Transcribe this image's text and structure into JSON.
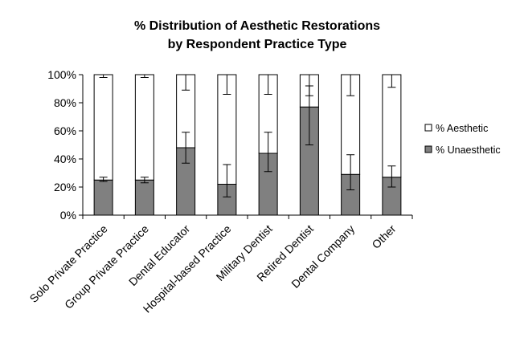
{
  "chart_data": {
    "type": "bar",
    "stacked": true,
    "percent_stacked": true,
    "title": "% Distribution of Aesthetic Restorations",
    "subtitle": "by Respondent Practice Type",
    "xlabel": "",
    "ylabel": "",
    "ylim": [
      0,
      100
    ],
    "yticks": [
      "0%",
      "20%",
      "40%",
      "60%",
      "80%",
      "100%"
    ],
    "grid": false,
    "legend_position": "right",
    "categories": [
      "Solo Private Practice",
      "Group Private Practice",
      "Dental Educator",
      "Hospital-based Practice",
      "Military Dentist",
      "Retired Dentist",
      "Dental Company",
      "Other"
    ],
    "series": [
      {
        "name": "% Unaesthetic",
        "color": "#808080",
        "values": [
          25,
          25,
          48,
          22,
          44,
          77,
          29,
          27
        ],
        "error": [
          [
            24,
            27
          ],
          [
            23,
            27
          ],
          [
            37,
            59
          ],
          [
            13,
            36
          ],
          [
            31,
            59
          ],
          [
            50,
            92
          ],
          [
            18,
            43
          ],
          [
            20,
            35
          ]
        ]
      },
      {
        "name": "% Aesthetic",
        "color": "#ffffff",
        "values": [
          75,
          75,
          52,
          78,
          56,
          23,
          71,
          73
        ],
        "error": [
          [
            98,
            100
          ],
          [
            98,
            100
          ],
          [
            89,
            100
          ],
          [
            86,
            100
          ],
          [
            86,
            100
          ],
          [
            85,
            100
          ],
          [
            85,
            100
          ],
          [
            91,
            100
          ]
        ]
      }
    ]
  }
}
